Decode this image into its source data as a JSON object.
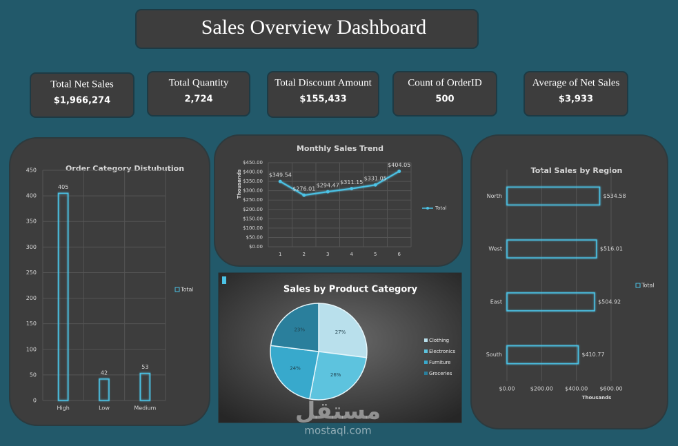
{
  "title": "Sales Overview Dashboard",
  "kpis": [
    {
      "label": "Total Net Sales",
      "value": "$1,966,274"
    },
    {
      "label": "Total Quantity",
      "value": "2,724"
    },
    {
      "label": "Total Discount Amount",
      "value": "$155,433"
    },
    {
      "label": "Count of OrderID",
      "value": "500"
    },
    {
      "label": "Average of Net Sales",
      "value": "$3,933"
    }
  ],
  "chart_data": [
    {
      "type": "bar",
      "title": "Order Category Distubution",
      "categories": [
        "High",
        "Low",
        "Medium"
      ],
      "series": [
        {
          "name": "Total",
          "color": "#4cc3e6",
          "values": [
            405,
            42,
            53
          ]
        }
      ],
      "ylim": [
        0,
        450
      ],
      "yticks": [
        0,
        50,
        100,
        150,
        200,
        250,
        300,
        350,
        400,
        450
      ],
      "grid": true,
      "legend": "right"
    },
    {
      "type": "line",
      "title": "Monthly Sales Trend",
      "y_label": "Thousands",
      "categories": [
        "1",
        "2",
        "3",
        "4",
        "5",
        "6"
      ],
      "series": [
        {
          "name": "Total",
          "color": "#4cc3e6",
          "values": [
            349.54,
            276.01,
            294.47,
            311.15,
            331.05,
            404.05
          ],
          "value_labels": [
            "$349.54",
            "$276.01",
            "$294.47",
            "$311.15",
            "$331.05",
            "$404.05"
          ]
        }
      ],
      "ylim": [
        0,
        450
      ],
      "yticks": [
        {
          "value": 0,
          "label": "$0.00"
        },
        {
          "value": 50,
          "label": "$50.00"
        },
        {
          "value": 100,
          "label": "$100.00"
        },
        {
          "value": 150,
          "label": "$150.00"
        },
        {
          "value": 200,
          "label": "$200.00"
        },
        {
          "value": 250,
          "label": "$250.00"
        },
        {
          "value": 300,
          "label": "$300.00"
        },
        {
          "value": 350,
          "label": "$350.00"
        },
        {
          "value": 400,
          "label": "$400.00"
        },
        {
          "value": 450,
          "label": "$450.00"
        }
      ],
      "grid": true,
      "legend": "right"
    },
    {
      "type": "pie",
      "title": "Sales by Product Category",
      "categories": [
        "Clothing",
        "Electronics",
        "Furniture",
        "Groceries"
      ],
      "values": [
        27,
        26,
        24,
        23
      ],
      "value_labels": [
        "27%",
        "26%",
        "24%",
        "23%"
      ],
      "colors": [
        "#b9e0ec",
        "#5dc3de",
        "#38a9cc",
        "#2a7f9c"
      ],
      "legend": "right"
    },
    {
      "type": "bar",
      "horizontal": true,
      "title": "Total Sales by Region",
      "x_label": "Thousands",
      "categories": [
        "North",
        "West",
        "East",
        "South"
      ],
      "series": [
        {
          "name": "Total",
          "color": "#4cc3e6",
          "values": [
            534.58,
            516.01,
            504.92,
            410.77
          ],
          "value_labels": [
            "$534.58",
            "$516.01",
            "$504.92",
            "$410.77"
          ]
        }
      ],
      "xlim": [
        0,
        600
      ],
      "xticks": [
        {
          "value": 0,
          "label": "$0.00"
        },
        {
          "value": 200,
          "label": "$200.00"
        },
        {
          "value": 400,
          "label": "$400.00"
        },
        {
          "value": 600,
          "label": "$600.00"
        }
      ],
      "grid": true,
      "legend": "right"
    }
  ],
  "watermark": {
    "logo": "مستقل",
    "site": "mostaql.com"
  }
}
